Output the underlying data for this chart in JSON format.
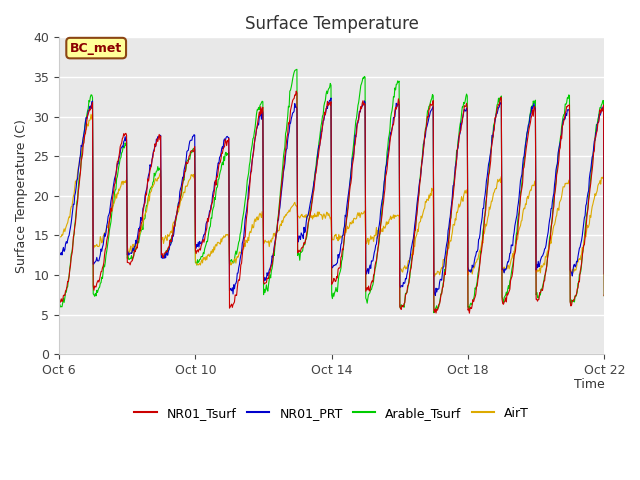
{
  "title": "Surface Temperature",
  "ylabel": "Surface Temperature (C)",
  "xlabel": "Time",
  "ylim": [
    0,
    40
  ],
  "yticks": [
    0,
    5,
    10,
    15,
    20,
    25,
    30,
    35,
    40
  ],
  "background_color": "#e8e8e8",
  "fig_color": "#ffffff",
  "annotation_text": "BC_met",
  "annotation_facecolor": "#ffff99",
  "annotation_edgecolor": "#8B4513",
  "annotation_textcolor": "#8B0000",
  "legend_labels": [
    "NR01_Tsurf",
    "NR01_PRT",
    "Arable_Tsurf",
    "AirT"
  ],
  "line_colors": [
    "#cc0000",
    "#0000cc",
    "#00cc00",
    "#ddaa00"
  ],
  "line_width": 0.8,
  "xtick_labels": [
    "Oct 6",
    "Oct 10",
    "Oct 14",
    "Oct 18",
    "Oct 22"
  ],
  "n_days": 17,
  "points_per_day": 48,
  "cycles": {
    "NR01_Tsurf": {
      "mins": [
        6.5,
        8.5,
        11.5,
        12.5,
        13.0,
        6.0,
        9.0,
        13.0,
        9.0,
        8.0,
        6.0,
        5.5,
        5.5,
        6.5,
        7.0,
        6.5,
        7.5
      ],
      "maxs": [
        31.5,
        28.0,
        27.5,
        26.0,
        27.0,
        31.0,
        33.0,
        32.0,
        32.0,
        31.5,
        32.0,
        31.5,
        32.0,
        31.0,
        31.5,
        31.0,
        25.0
      ]
    },
    "NR01_PRT": {
      "mins": [
        12.5,
        11.5,
        12.5,
        12.0,
        13.5,
        8.0,
        9.5,
        14.5,
        11.0,
        10.5,
        8.5,
        8.0,
        10.5,
        10.5,
        11.0,
        10.5,
        10.0
      ],
      "maxs": [
        31.5,
        27.0,
        27.5,
        27.5,
        27.5,
        30.5,
        31.5,
        32.0,
        32.0,
        31.5,
        31.0,
        31.0,
        31.5,
        31.5,
        31.0,
        31.0,
        24.0
      ]
    },
    "Arable_Tsurf": {
      "mins": [
        6.0,
        7.5,
        12.0,
        12.5,
        11.5,
        11.5,
        8.0,
        12.5,
        7.5,
        7.0,
        6.0,
        5.5,
        6.0,
        7.0,
        7.0,
        6.5,
        7.5
      ],
      "maxs": [
        32.5,
        26.5,
        23.5,
        26.0,
        25.5,
        32.0,
        36.0,
        34.0,
        35.0,
        34.5,
        32.5,
        32.5,
        32.5,
        32.0,
        32.5,
        32.0,
        28.0
      ]
    },
    "AirT": {
      "mins": [
        15.0,
        13.5,
        13.0,
        14.5,
        11.5,
        11.5,
        14.0,
        17.5,
        14.5,
        14.5,
        10.5,
        10.0,
        10.5,
        10.5,
        10.5,
        10.5,
        10.5
      ],
      "maxs": [
        30.0,
        22.0,
        22.5,
        22.5,
        15.0,
        17.5,
        19.0,
        17.0,
        18.0,
        17.5,
        20.5,
        20.5,
        22.0,
        21.5,
        22.0,
        22.0,
        20.0
      ]
    }
  }
}
